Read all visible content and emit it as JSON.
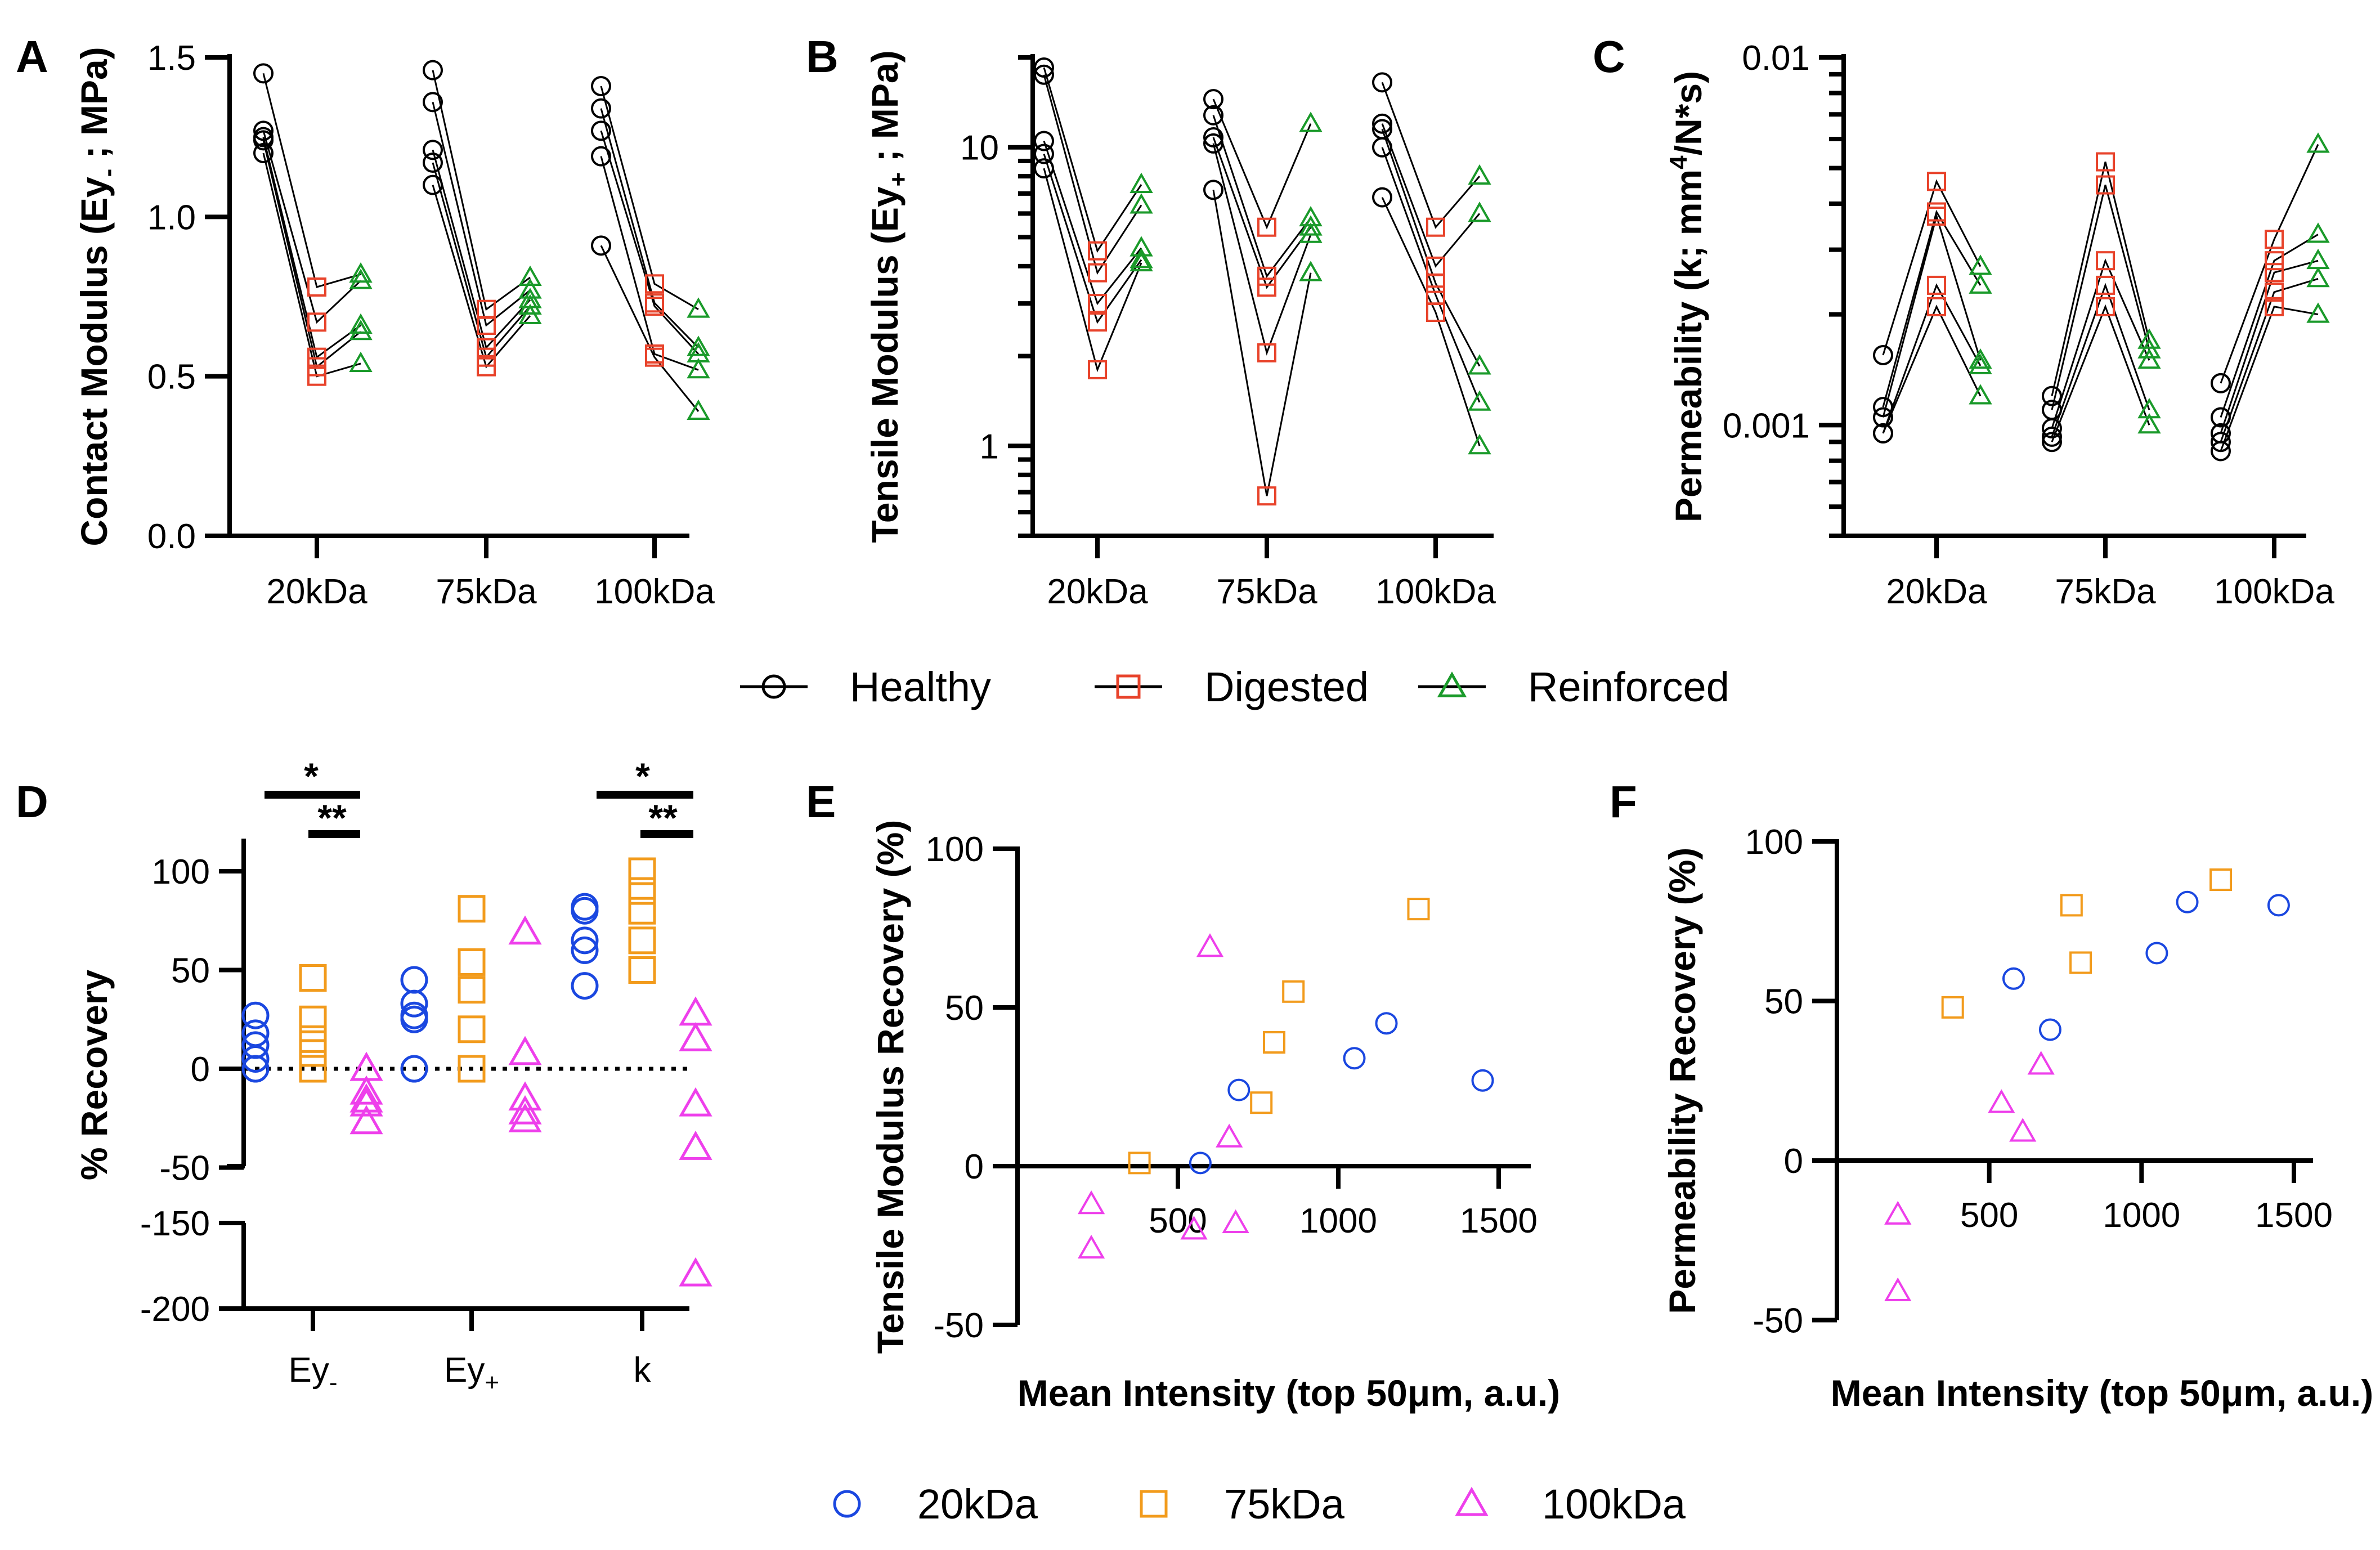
{
  "colors": {
    "healthy": "#000000",
    "digested": "#E8432B",
    "reinforced": "#1A9A2A",
    "kda20": "#1A47E0",
    "kda75": "#F29B1C",
    "kda100": "#EE3FEB"
  },
  "legend_top": {
    "items": [
      {
        "label": "Healthy",
        "marker": "circle-icon",
        "color": "#000000"
      },
      {
        "label": "Digested",
        "marker": "square-icon",
        "color": "#E8432B"
      },
      {
        "label": "Reinforced",
        "marker": "triangle-icon",
        "color": "#1A9A2A"
      }
    ]
  },
  "legend_bottom": {
    "items": [
      {
        "label": "20kDa",
        "marker": "circle-icon",
        "color": "#1A47E0"
      },
      {
        "label": "75kDa",
        "marker": "square-icon",
        "color": "#F29B1C"
      },
      {
        "label": "100kDa",
        "marker": "triangle-icon",
        "color": "#EE3FEB"
      }
    ]
  },
  "chart_data": [
    {
      "id": "A",
      "letter": "A",
      "type": "line",
      "ylabel": "Contact Modulus (Ey- ; MPa)",
      "ylabel_main": "Contact Modulus (Ey",
      "ylabel_sub": "-",
      "ylabel_end": "; MPa)",
      "yscale": "linear",
      "ylim": [
        0,
        1.5
      ],
      "yticks": [
        {
          "v": 0,
          "label": "0.0"
        },
        {
          "v": 0.5,
          "label": "0.5"
        },
        {
          "v": 1.0,
          "label": "1.0"
        },
        {
          "v": 1.5,
          "label": "1.5"
        }
      ],
      "categories": [
        "20kDa",
        "75kDa",
        "100kDa"
      ],
      "series_names": [
        "Healthy",
        "Digested",
        "Reinforced"
      ],
      "groups": [
        {
          "category": "20kDa",
          "healthy": [
            1.45,
            1.27,
            1.25,
            1.24,
            1.2
          ],
          "digested": [
            0.78,
            0.67,
            0.56,
            0.53,
            0.5
          ],
          "reinforced": [
            0.82,
            0.8,
            0.66,
            0.64,
            0.54
          ]
        },
        {
          "category": "75kDa",
          "healthy": [
            1.46,
            1.36,
            1.21,
            1.17,
            1.1
          ],
          "digested": [
            0.71,
            0.66,
            0.59,
            0.56,
            0.53
          ],
          "reinforced": [
            0.81,
            0.77,
            0.74,
            0.72,
            0.69
          ]
        },
        {
          "category": "100kDa",
          "healthy": [
            1.41,
            1.34,
            1.27,
            1.19,
            0.91
          ],
          "digested": [
            0.79,
            0.73,
            0.72,
            0.57,
            0.56
          ],
          "reinforced": [
            0.71,
            0.59,
            0.57,
            0.52,
            0.39
          ]
        }
      ]
    },
    {
      "id": "B",
      "letter": "B",
      "type": "line",
      "ylabel": "Tensile Modulus (Ey+ ; MPa)",
      "ylabel_main": "Tensile Modulus (Ey",
      "ylabel_sub": "+",
      "ylabel_end": "; MPa)",
      "yscale": "log",
      "ylim": [
        0.5,
        20
      ],
      "yticks": [
        {
          "v": 1,
          "label": "1"
        },
        {
          "v": 10,
          "label": "10"
        }
      ],
      "categories": [
        "20kDa",
        "75kDa",
        "100kDa"
      ],
      "series_names": [
        "Healthy",
        "Digested",
        "Reinforced"
      ],
      "groups": [
        {
          "category": "20kDa",
          "healthy": [
            18.5,
            17.5,
            10.5,
            9.5,
            8.5
          ],
          "digested": [
            4.5,
            3.8,
            3.0,
            2.6,
            1.8
          ],
          "reinforced": [
            7.5,
            6.4,
            4.6,
            4.2,
            4.1
          ]
        },
        {
          "category": "75kDa",
          "healthy": [
            14.5,
            12.8,
            10.8,
            10.3,
            7.2
          ],
          "digested": [
            5.4,
            3.7,
            3.4,
            2.05,
            0.68
          ],
          "reinforced": [
            12.0,
            5.8,
            5.4,
            5.1,
            3.8
          ]
        },
        {
          "category": "100kDa",
          "healthy": [
            16.5,
            12.0,
            11.5,
            10.0,
            6.8
          ],
          "digested": [
            5.4,
            4.0,
            3.5,
            3.2,
            2.8
          ],
          "reinforced": [
            8.0,
            6.0,
            1.85,
            1.4,
            1.0
          ]
        }
      ]
    },
    {
      "id": "C",
      "letter": "C",
      "type": "line",
      "ylabel": "Permeability (k; mm4/N*s)",
      "ylabel_main": "Permeability (k; mm",
      "ylabel_sup": "4",
      "ylabel_end": "/N*s)",
      "yscale": "log",
      "ylim": [
        0.0005,
        0.01
      ],
      "yticks": [
        {
          "v": 0.001,
          "label": "0.001"
        },
        {
          "v": 0.01,
          "label": "0.01"
        }
      ],
      "categories": [
        "20kDa",
        "75kDa",
        "100kDa"
      ],
      "series_names": [
        "Healthy",
        "Digested",
        "Reinforced"
      ],
      "groups": [
        {
          "category": "20kDa",
          "healthy": [
            0.00155,
            0.00112,
            0.00105,
            0.00095,
            0.00095
          ],
          "digested": [
            0.0046,
            0.0038,
            0.0037,
            0.0024,
            0.0021
          ],
          "reinforced": [
            0.0027,
            0.0024,
            0.0015,
            0.00145,
            0.0012
          ]
        },
        {
          "category": "75kDa",
          "healthy": [
            0.0012,
            0.0011,
            0.00098,
            0.00093,
            0.0009
          ],
          "digested": [
            0.0052,
            0.0045,
            0.0028,
            0.0024,
            0.0021
          ],
          "reinforced": [
            0.0017,
            0.0016,
            0.0015,
            0.0011,
            0.001
          ]
        },
        {
          "category": "100kDa",
          "healthy": [
            0.0013,
            0.00105,
            0.00095,
            0.0009,
            0.00085
          ],
          "digested": [
            0.0032,
            0.0028,
            0.0026,
            0.0023,
            0.0021
          ],
          "reinforced": [
            0.0058,
            0.0033,
            0.0028,
            0.0025,
            0.002
          ]
        }
      ]
    },
    {
      "id": "D",
      "letter": "D",
      "type": "scatter",
      "ylabel": "% Recovery",
      "yscale": "broken-linear",
      "ylim": [
        -200,
        120
      ],
      "yticks": [
        {
          "v": 100,
          "label": "100"
        },
        {
          "v": 50,
          "label": "50"
        },
        {
          "v": 0,
          "label": "0"
        },
        {
          "v": -50,
          "label": "-50"
        },
        {
          "v": -150,
          "label": "-150"
        },
        {
          "v": -200,
          "label": "-200"
        }
      ],
      "categories": [
        {
          "main": "Ey",
          "sub": "-",
          "mode": "sub"
        },
        {
          "main": "Ey",
          "sub": "+",
          "mode": "sub"
        },
        {
          "main": "k",
          "sub": "",
          "mode": "none"
        }
      ],
      "series_names": [
        "20kDa",
        "75kDa",
        "100kDa"
      ],
      "groups": [
        {
          "kda20": [
            27,
            18,
            12,
            5,
            0
          ],
          "kda75": [
            46,
            25,
            15,
            8,
            0
          ],
          "kda100": [
            0,
            -12,
            -16,
            -18,
            -27
          ]
        },
        {
          "kda20": [
            45,
            33,
            27,
            25,
            0
          ],
          "kda75": [
            81,
            54,
            40,
            20,
            0
          ],
          "kda100": [
            69,
            8,
            -15,
            -22,
            -26
          ]
        },
        {
          "kda20": [
            82,
            80,
            65,
            60,
            42
          ],
          "kda75": [
            100,
            90,
            80,
            65,
            50
          ],
          "kda100": [
            28,
            15,
            -18,
            -40,
            -180
          ]
        }
      ],
      "significance": [
        {
          "label": "*",
          "from": 0,
          "to": 2
        },
        {
          "label": "**",
          "from": 1,
          "to": 2
        },
        {
          "label": "*",
          "from": 0,
          "to": 2,
          "category": 2
        },
        {
          "label": "**",
          "from": 1,
          "to": 2,
          "category": 2
        }
      ]
    },
    {
      "id": "E",
      "letter": "E",
      "type": "scatter",
      "ylabel": "Tensile Modulus Recovery (%)",
      "xlabel": "Mean Intensity (top 50μm, a.u.)",
      "xlim": [
        0,
        1600
      ],
      "ylim": [
        -50,
        100
      ],
      "xticks": [
        500,
        1000,
        1500
      ],
      "yticks": [
        -50,
        0,
        50,
        100
      ],
      "series": [
        {
          "name": "20kDa",
          "points": [
            [
              570,
              1
            ],
            [
              690,
              24
            ],
            [
              1050,
              34
            ],
            [
              1150,
              45
            ],
            [
              1450,
              27
            ]
          ]
        },
        {
          "name": "75kDa",
          "points": [
            [
              380,
              1
            ],
            [
              760,
              20
            ],
            [
              800,
              39
            ],
            [
              860,
              55
            ],
            [
              1250,
              81
            ]
          ]
        },
        {
          "name": "100kDa",
          "points": [
            [
              230,
              -12
            ],
            [
              230,
              -26
            ],
            [
              550,
              -20
            ],
            [
              600,
              69
            ],
            [
              660,
              9
            ],
            [
              680,
              -18
            ]
          ]
        }
      ]
    },
    {
      "id": "F",
      "letter": "F",
      "type": "scatter",
      "ylabel": "Permeability Recovery (%)",
      "xlabel": "Mean Intensity (top 50μm, a.u.)",
      "xlim": [
        0,
        1600
      ],
      "ylim": [
        -50,
        100
      ],
      "xticks": [
        500,
        1000,
        1500
      ],
      "yticks": [
        -50,
        0,
        50,
        100
      ],
      "series": [
        {
          "name": "20kDa",
          "points": [
            [
              580,
              57
            ],
            [
              700,
              41
            ],
            [
              1050,
              65
            ],
            [
              1150,
              81
            ],
            [
              1450,
              80
            ]
          ]
        },
        {
          "name": "75kDa",
          "points": [
            [
              380,
              48
            ],
            [
              770,
              80
            ],
            [
              800,
              62
            ],
            [
              1260,
              88
            ]
          ]
        },
        {
          "name": "100kDa",
          "points": [
            [
              200,
              -17
            ],
            [
              200,
              -41
            ],
            [
              540,
              18
            ],
            [
              610,
              9
            ],
            [
              670,
              30
            ]
          ]
        }
      ]
    }
  ]
}
